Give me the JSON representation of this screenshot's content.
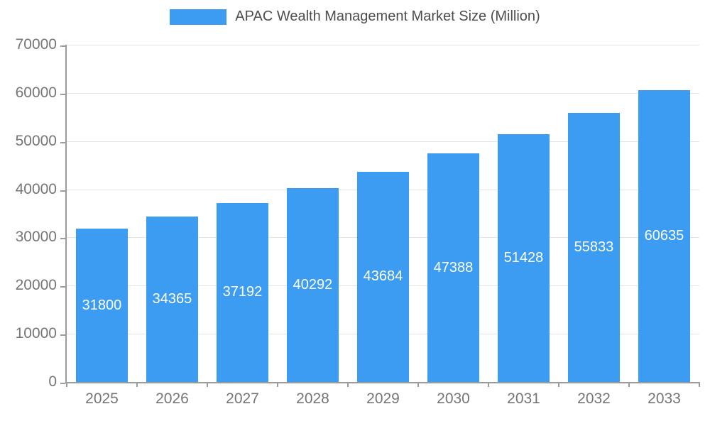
{
  "legend": {
    "title": "APAC Wealth Management Market Size (Million)"
  },
  "chart_data": {
    "type": "bar",
    "title": "APAC Wealth Management Market Size (Million)",
    "series_name": "APAC Wealth Management Market Size (Million)",
    "categories": [
      "2025",
      "2026",
      "2027",
      "2028",
      "2029",
      "2030",
      "2031",
      "2032",
      "2033"
    ],
    "values": [
      31800,
      34365,
      37192,
      40292,
      43684,
      47388,
      51428,
      55833,
      60635
    ],
    "xlabel": "",
    "ylabel": "",
    "ylim": [
      0,
      70000
    ],
    "ytick_step": 10000,
    "ytick_labels": [
      "0",
      "10000",
      "20000",
      "30000",
      "40000",
      "50000",
      "60000",
      "70000"
    ],
    "grid": true,
    "legend_position": "top",
    "value_labels_position": "inside-center",
    "colors": {
      "bar": "#3b9cf1",
      "value_label": "#ffffff",
      "axis_line": "#9b9b9b",
      "gridline": "#e4e4e4",
      "tick_label": "#757575",
      "legend_text": "#4d4d4d",
      "background": "#ffffff"
    }
  }
}
